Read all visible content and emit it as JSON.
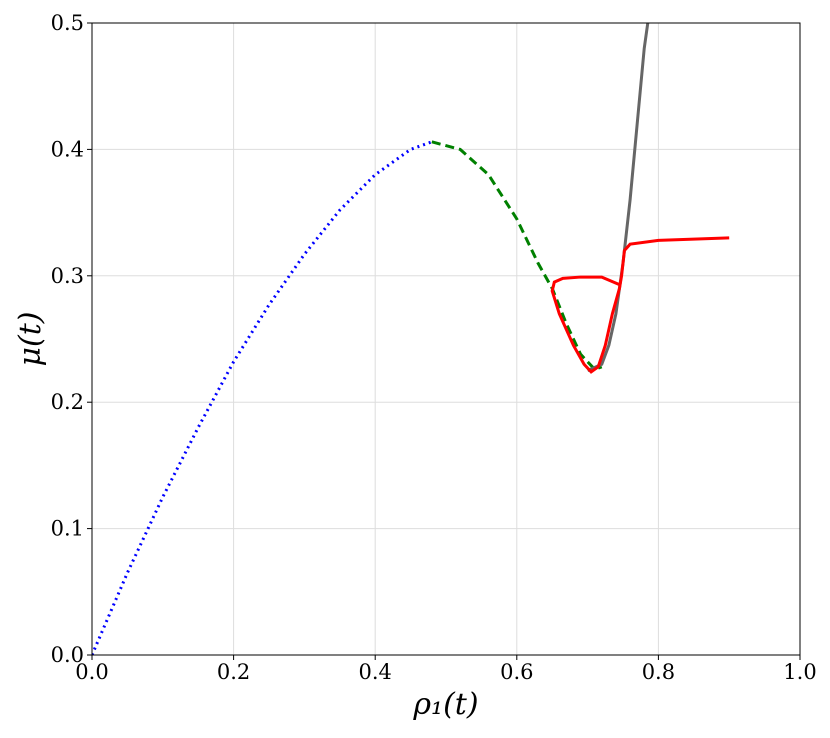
{
  "chart_data": {
    "type": "line",
    "x_label": "ρ₁(t)",
    "y_label": "μ(t)",
    "xlim": [
      0,
      1
    ],
    "ylim": [
      0,
      0.5
    ],
    "xticks": [
      {
        "value": 0,
        "label": "0.0"
      },
      0.2,
      0.4,
      0.6,
      0.8,
      {
        "value": 1,
        "label": "1.0"
      }
    ],
    "yticks": [
      {
        "value": 0,
        "label": "0.0"
      },
      0.1,
      0.2,
      0.3,
      0.4,
      0.5
    ],
    "grid": true,
    "series": [
      {
        "color": "#0000ff",
        "style": "dotted",
        "x": [
          0,
          0.05,
          0.1,
          0.15,
          0.2,
          0.25,
          0.3,
          0.35,
          0.4,
          0.45,
          0.48
        ],
        "values": [
          0,
          0.065,
          0.125,
          0.18,
          0.232,
          0.277,
          0.317,
          0.352,
          0.38,
          0.4,
          0.406
        ]
      },
      {
        "color": "#008000",
        "style": "dashed",
        "x": [
          0.48,
          0.52,
          0.56,
          0.6,
          0.63,
          0.65,
          0.67,
          0.69,
          0.71,
          0.72
        ],
        "values": [
          0.406,
          0.4,
          0.38,
          0.345,
          0.31,
          0.29,
          0.262,
          0.238,
          0.226,
          0.228
        ]
      },
      {
        "color": "#666666",
        "style": "solid",
        "x": [
          0.7,
          0.72,
          0.73,
          0.74,
          0.75,
          0.76,
          0.77,
          0.78,
          0.785
        ],
        "values": [
          0.225,
          0.23,
          0.245,
          0.27,
          0.31,
          0.36,
          0.42,
          0.48,
          0.5
        ]
      },
      {
        "color": "#ff0000",
        "style": "solid",
        "x": [
          0.745,
          0.72,
          0.69,
          0.665,
          0.653,
          0.65,
          0.66,
          0.68,
          0.695,
          0.705,
          0.715,
          0.725,
          0.735,
          0.745,
          0.748,
          0.752,
          0.76,
          0.8,
          0.85,
          0.9
        ],
        "values": [
          0.293,
          0.299,
          0.299,
          0.298,
          0.295,
          0.288,
          0.27,
          0.245,
          0.23,
          0.224,
          0.228,
          0.245,
          0.27,
          0.29,
          0.3,
          0.32,
          0.325,
          0.328,
          0.329,
          0.33
        ]
      }
    ]
  }
}
